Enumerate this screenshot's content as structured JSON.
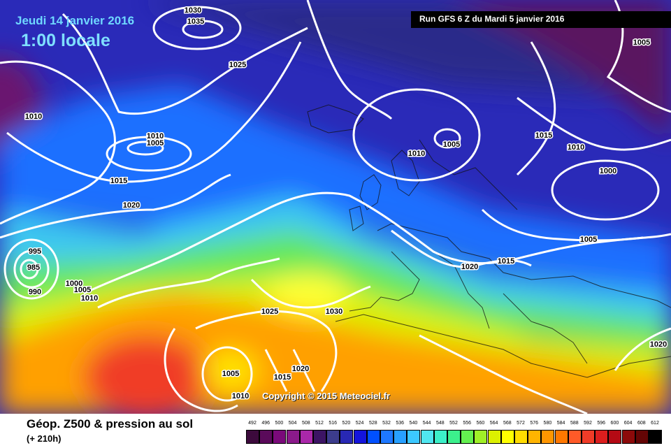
{
  "header": {
    "date": "Jeudi 14 janvier 2016",
    "time": "1:00 locale",
    "run": "Run GFS 6 Z du Mardi 5 janvier 2016"
  },
  "copyright": "Copyright © 2015 Meteociel.fr",
  "footer": {
    "title": "Géop. Z500 & pression au sol",
    "subtitle": "(+ 210h)"
  },
  "legend": {
    "labels": [
      "492",
      "496",
      "500",
      "504",
      "508",
      "512",
      "516",
      "520",
      "524",
      "528",
      "532",
      "536",
      "540",
      "544",
      "548",
      "552",
      "556",
      "560",
      "564",
      "568",
      "572",
      "576",
      "580",
      "584",
      "588",
      "592",
      "596",
      "600",
      "604",
      "608",
      "612"
    ],
    "colors": [
      "#3c0a3c",
      "#5a0a5a",
      "#7a0a7a",
      "#8a1a8a",
      "#aa28aa",
      "#3c1464",
      "#3c3c8c",
      "#2828b4",
      "#1414dc",
      "#0050ff",
      "#1e78ff",
      "#28a0ff",
      "#3cc8ff",
      "#50e6f0",
      "#3cf0c8",
      "#3cf08c",
      "#64f050",
      "#a0f028",
      "#dcf000",
      "#ffff00",
      "#ffdc00",
      "#ffb400",
      "#ff9600",
      "#ff7800",
      "#ff5a28",
      "#f03c28",
      "#dc1e1e",
      "#b40a14",
      "#8c0a0a",
      "#640505",
      "#000000"
    ]
  },
  "isobars": [
    {
      "label": "1030"
    },
    {
      "label": "1035"
    },
    {
      "label": "1025"
    },
    {
      "label": "1005"
    },
    {
      "label": "1010"
    },
    {
      "label": "1010"
    },
    {
      "label": "1005"
    },
    {
      "label": "1015"
    },
    {
      "label": "1020"
    },
    {
      "label": "1010"
    },
    {
      "label": "1005"
    },
    {
      "label": "1015"
    },
    {
      "label": "1010"
    },
    {
      "label": "1000"
    },
    {
      "label": "1005"
    },
    {
      "label": "995"
    },
    {
      "label": "985"
    },
    {
      "label": "990"
    },
    {
      "label": "1000"
    },
    {
      "label": "1005"
    },
    {
      "label": "1010"
    },
    {
      "label": "1025"
    },
    {
      "label": "1030"
    },
    {
      "label": "1020"
    },
    {
      "label": "1015"
    },
    {
      "label": "1020"
    },
    {
      "label": "1005"
    },
    {
      "label": "1015"
    },
    {
      "label": "1020"
    },
    {
      "label": "1010"
    }
  ]
}
